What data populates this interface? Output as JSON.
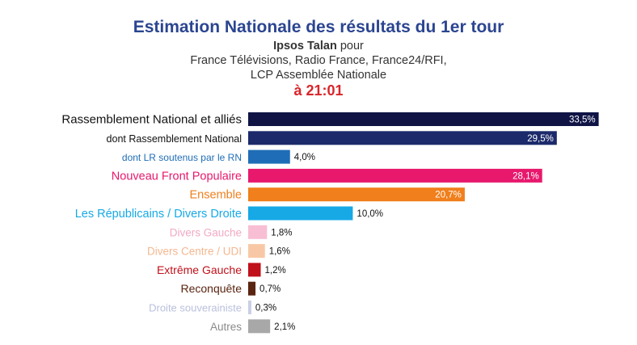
{
  "header": {
    "title": "Estimation Nationale des résultats du 1er tour",
    "pollster": "Ipsos Talan",
    "pour": " pour",
    "line2": "France Télévisions, Radio France, France24/RFI,",
    "line3": "LCP Assemblée Nationale",
    "time": "à 21:01"
  },
  "chart_data": {
    "type": "bar",
    "orientation": "horizontal",
    "unit": "%",
    "xlim": [
      0,
      35
    ],
    "categories": [
      "Rassemblement National et alliés",
      "dont Rassemblement National",
      "dont LR soutenus par le RN",
      "Nouveau Front Populaire",
      "Ensemble",
      "Les Républicains / Divers Droite",
      "Divers Gauche",
      "Divers Centre / UDI",
      "Extrême Gauche",
      "Reconquête",
      "Droite souverainiste",
      "Autres"
    ],
    "values": [
      33.5,
      29.5,
      4.0,
      28.1,
      20.7,
      10.0,
      1.8,
      1.6,
      1.2,
      0.7,
      0.3,
      2.1
    ],
    "value_labels": [
      "33,5%",
      "29,5%",
      "4,0%",
      "28,1%",
      "20,7%",
      "10,0%",
      "1,8%",
      "1,6%",
      "1,2%",
      "0,7%",
      "0,3%",
      "2,1%"
    ],
    "colors": [
      "#0f1445",
      "#1c2a6b",
      "#1f6db6",
      "#e8186d",
      "#f07f1c",
      "#16a9e6",
      "#f8bed3",
      "#f8c8a6",
      "#c0101a",
      "#5a2410",
      "#c9cfe6",
      "#a8a8a8"
    ],
    "label_colors": [
      "#111111",
      "#111111",
      "#1f6db6",
      "#e8186d",
      "#f07f1c",
      "#16a9e6",
      "#f2a9c4",
      "#f4b78f",
      "#c0101a",
      "#5a2410",
      "#b9c0dd",
      "#8a8a8a"
    ],
    "value_inside": [
      true,
      true,
      false,
      true,
      true,
      false,
      false,
      false,
      false,
      false,
      false,
      false
    ]
  }
}
